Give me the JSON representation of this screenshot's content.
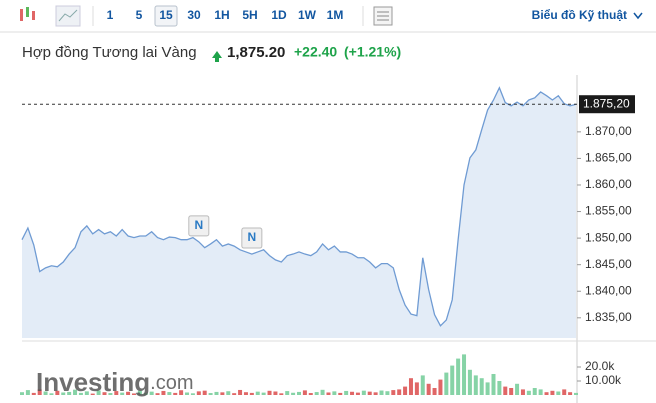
{
  "toolbar": {
    "intervals": [
      "1",
      "5",
      "15",
      "30",
      "1H",
      "5H",
      "1D",
      "1W",
      "1M"
    ],
    "selected": 2,
    "link": "Biểu đồ Kỹ thuật"
  },
  "header": {
    "title": "Hợp đồng Tương lai Vàng",
    "price": "1,875.20",
    "change": "+22.40",
    "change_pct": "(+1.21%)"
  },
  "chart_data": {
    "type": "line",
    "series": [
      {
        "name": "price",
        "color": "#6f9bd3",
        "fill": "#e3ecf7",
        "values": [
          1849.7,
          1851.9,
          1848.7,
          1843.7,
          1844.4,
          1844.8,
          1844.6,
          1845.5,
          1847.0,
          1848.2,
          1851.2,
          1852.3,
          1850.8,
          1851.6,
          1850.8,
          1851.2,
          1850.4,
          1851.6,
          1850.4,
          1850.1,
          1850.4,
          1850.4,
          1851.2,
          1850.1,
          1849.7,
          1850.2,
          1850.1,
          1849.7,
          1849.7,
          1850.1,
          1849.3,
          1848.2,
          1848.9,
          1849.7,
          1848.5,
          1848.9,
          1848.5,
          1847.8,
          1847.4,
          1847.0,
          1847.4,
          1847.8,
          1846.7,
          1845.9,
          1845.5,
          1846.7,
          1847.0,
          1847.4,
          1847.0,
          1846.7,
          1847.4,
          1848.9,
          1847.8,
          1848.5,
          1847.4,
          1847.4,
          1847.0,
          1846.3,
          1846.3,
          1845.5,
          1844.4,
          1845.2,
          1845.2,
          1844.4,
          1840.3,
          1837.4,
          1835.7,
          1835.4,
          1846.3,
          1840.3,
          1835.6,
          1833.5,
          1834.6,
          1838.4,
          1849.7,
          1860.0,
          1865.1,
          1866.6,
          1870.4,
          1874.1,
          1876.0,
          1878.3,
          1875.5,
          1874.9,
          1875.6,
          1874.9,
          1876.0,
          1876.4,
          1877.5,
          1876.8,
          1876.0,
          1876.8,
          1875.3,
          1874.9,
          1875.2
        ]
      }
    ],
    "last_label": "1.875,20",
    "ylim": [
      1831.2,
      1880.7
    ],
    "yticks": [
      {
        "value": 1835,
        "label": "1.835,00"
      },
      {
        "value": 1840,
        "label": "1.840,00"
      },
      {
        "value": 1845,
        "label": "1.845,00"
      },
      {
        "value": 1850,
        "label": "1.850,00"
      },
      {
        "value": 1855,
        "label": "1.855,00"
      },
      {
        "value": 1860,
        "label": "1.860,00"
      },
      {
        "value": 1865,
        "label": "1.865,00"
      },
      {
        "value": 1870,
        "label": "1.870,00"
      }
    ],
    "annotations": [
      {
        "text": "N",
        "index": 30
      },
      {
        "text": "N",
        "index": 39
      }
    ],
    "volume": {
      "up_color": "#86d3a6",
      "down_color": "#e06666",
      "values": [
        2000,
        3500,
        1500,
        4000,
        2500,
        1200,
        3000,
        1800,
        2200,
        3800,
        1500,
        2600,
        1000,
        3200,
        2000,
        1400,
        2800,
        1700,
        2300,
        1100,
        3000,
        1600,
        2400,
        1300,
        2900,
        2100,
        1500,
        3400,
        1800,
        1200,
        2600,
        3100,
        1400,
        2200,
        1900,
        2700,
        1300,
        3600,
        2000,
        1500,
        2400,
        1700,
        3000,
        2500,
        1200,
        2800,
        1600,
        2200,
        3300,
        1400,
        2100,
        3700,
        1800,
        2600,
        1500,
        2900,
        2300,
        1700,
        3100,
        2400,
        1900,
        3200,
        2700,
        3500,
        4000,
        6000,
        12000,
        9000,
        14000,
        8000,
        5000,
        11000,
        16000,
        21000,
        26000,
        29000,
        18000,
        14000,
        12000,
        9000,
        15000,
        10000,
        6000,
        5000,
        8000,
        4000,
        3000,
        5000,
        4000,
        2000,
        3000,
        2500,
        4000,
        2000,
        1500
      ],
      "ylim": [
        0,
        35700
      ],
      "yticks": [
        {
          "value": 10000,
          "label": "10.00k"
        },
        {
          "value": 20000,
          "label": "20.0k"
        }
      ]
    },
    "watermark": {
      "brand": "Investing",
      "suffix": ".com"
    }
  }
}
